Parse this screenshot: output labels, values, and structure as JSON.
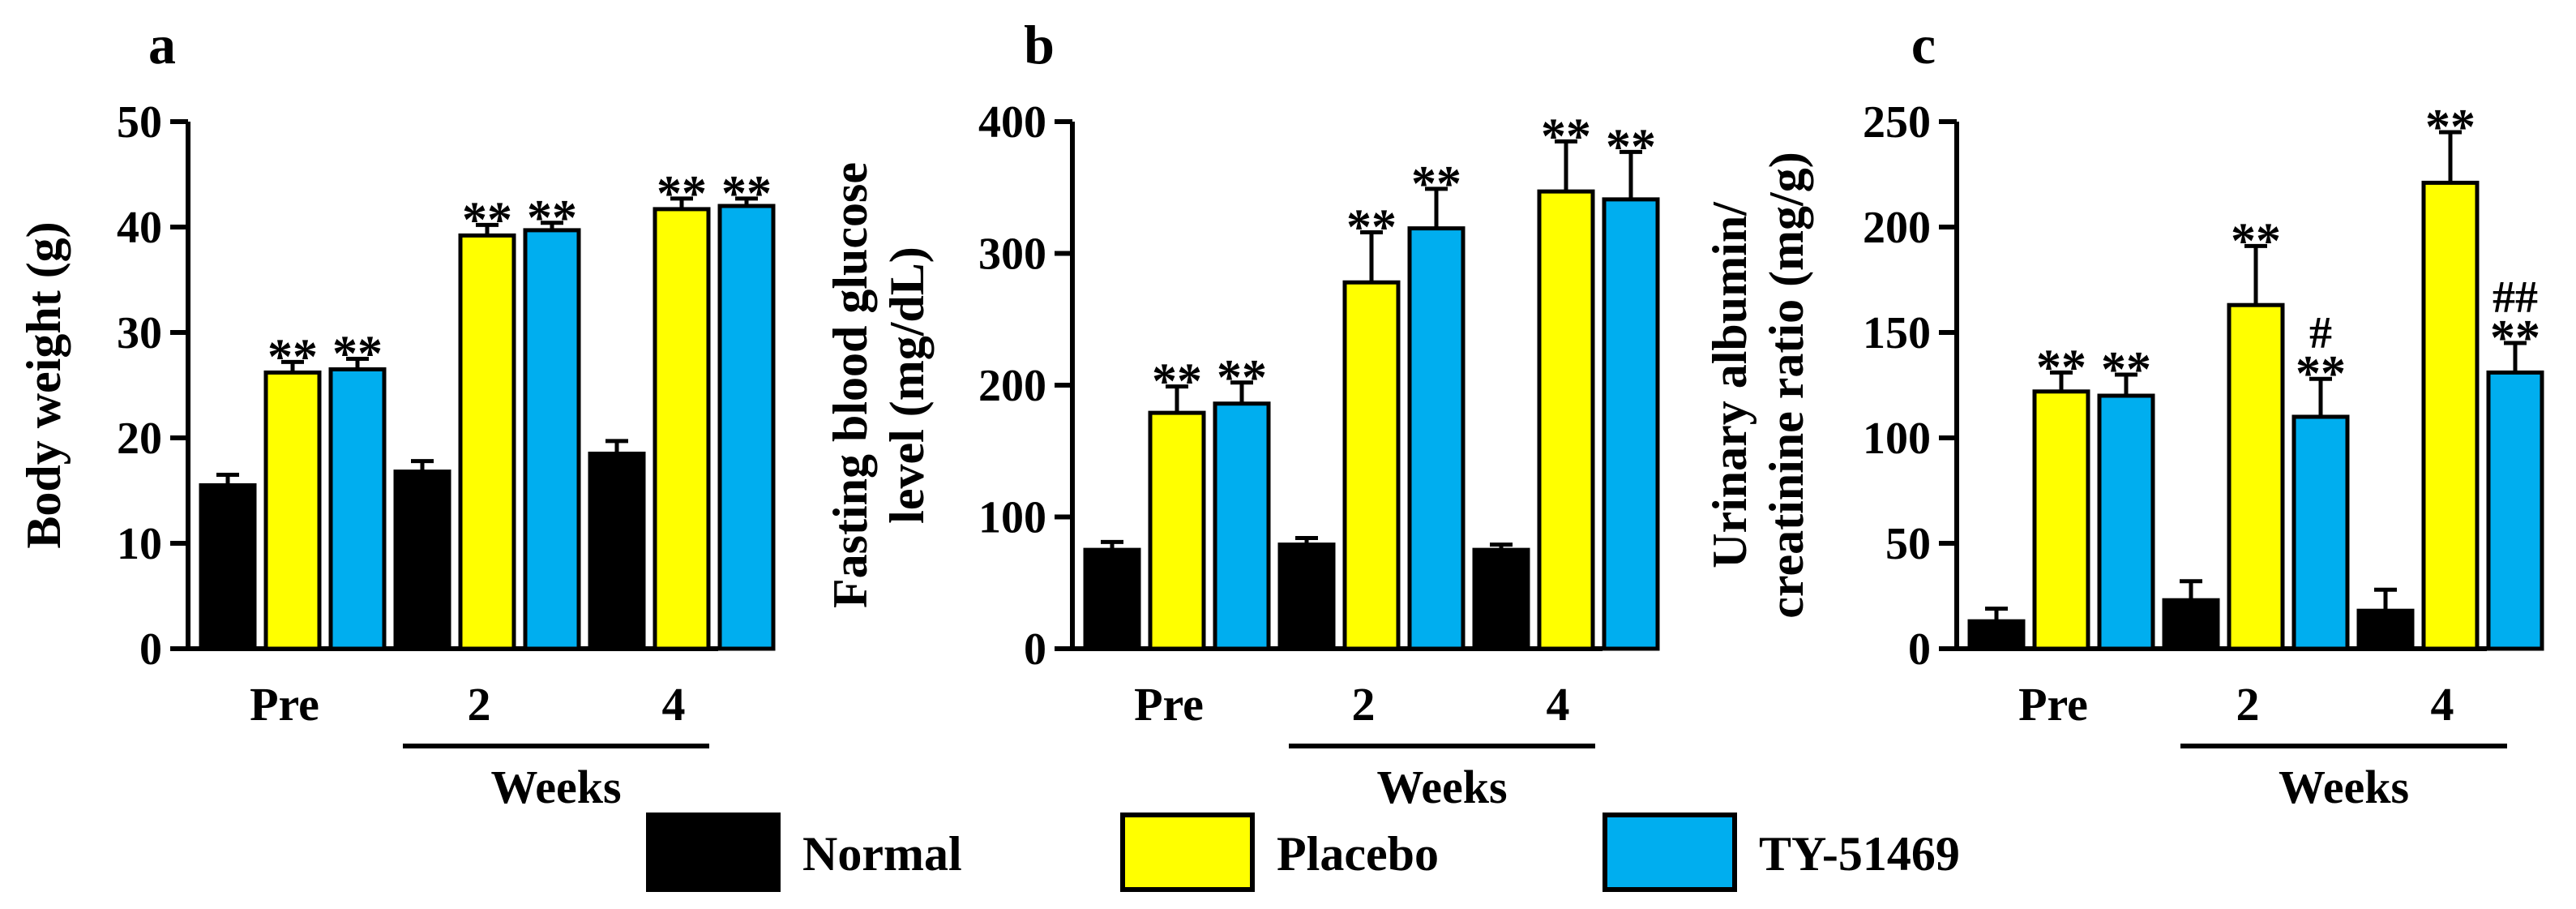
{
  "legend": [
    {
      "label": "Normal",
      "color": "#000000"
    },
    {
      "label": "Placebo",
      "color": "#ffff00"
    },
    {
      "label": "TY-51469",
      "color": "#00aeef"
    }
  ],
  "chart_data": [
    {
      "type": "bar",
      "panel": "a",
      "ylabel": "Body weight (g)",
      "ylabel_lines": [
        "Body weight (g)"
      ],
      "ylim": [
        0,
        50
      ],
      "yticks": [
        0,
        10,
        20,
        30,
        40,
        50
      ],
      "categories": [
        "Pre",
        "2",
        "4"
      ],
      "xlabel": "Weeks",
      "series": [
        {
          "name": "Normal",
          "values": [
            15.5,
            16.8,
            18.5
          ],
          "errors": [
            1.0,
            1.0,
            1.2
          ]
        },
        {
          "name": "Placebo",
          "values": [
            26.2,
            39.2,
            41.7
          ],
          "errors": [
            1.0,
            1.0,
            1.0
          ]
        },
        {
          "name": "TY-51469",
          "values": [
            26.5,
            39.7,
            42.0
          ],
          "errors": [
            1.0,
            0.7,
            0.7
          ]
        }
      ],
      "annotations": [
        {
          "category": 0,
          "series": 1,
          "text": "**"
        },
        {
          "category": 0,
          "series": 2,
          "text": "**"
        },
        {
          "category": 1,
          "series": 1,
          "text": "**"
        },
        {
          "category": 1,
          "series": 2,
          "text": "**"
        },
        {
          "category": 2,
          "series": 1,
          "text": "**"
        },
        {
          "category": 2,
          "series": 2,
          "text": "**"
        }
      ]
    },
    {
      "type": "bar",
      "panel": "b",
      "ylabel": "Fasting blood glucose level (mg/dL)",
      "ylabel_lines": [
        "Fasting blood glucose",
        "level (mg/dL)"
      ],
      "ylim": [
        0,
        400
      ],
      "yticks": [
        0,
        100,
        200,
        300,
        400
      ],
      "categories": [
        "Pre",
        "2",
        "4"
      ],
      "xlabel": "Weeks",
      "series": [
        {
          "name": "Normal",
          "values": [
            75,
            79,
            75
          ],
          "errors": [
            6,
            5,
            4
          ]
        },
        {
          "name": "Placebo",
          "values": [
            179,
            278,
            347
          ],
          "errors": [
            20,
            38,
            38
          ]
        },
        {
          "name": "TY-51469",
          "values": [
            186,
            319,
            341
          ],
          "errors": [
            16,
            30,
            36
          ]
        }
      ],
      "annotations": [
        {
          "category": 0,
          "series": 1,
          "text": "**"
        },
        {
          "category": 0,
          "series": 2,
          "text": "**"
        },
        {
          "category": 1,
          "series": 1,
          "text": "**"
        },
        {
          "category": 1,
          "series": 2,
          "text": "**"
        },
        {
          "category": 2,
          "series": 1,
          "text": "**"
        },
        {
          "category": 2,
          "series": 2,
          "text": "**"
        }
      ]
    },
    {
      "type": "bar",
      "panel": "c",
      "ylabel": "Urinary albumin/ creatinine ratio (mg/g)",
      "ylabel_lines": [
        "Urinary albumin/",
        "creatinine ratio (mg/g)"
      ],
      "ylim": [
        0,
        250
      ],
      "yticks": [
        0,
        50,
        100,
        150,
        200,
        250
      ],
      "categories": [
        "Pre",
        "2",
        "4"
      ],
      "xlabel": "Weeks",
      "series": [
        {
          "name": "Normal",
          "values": [
            13,
            23,
            18
          ],
          "errors": [
            6,
            9,
            10
          ]
        },
        {
          "name": "Placebo",
          "values": [
            122,
            163,
            221
          ],
          "errors": [
            9,
            28,
            24
          ]
        },
        {
          "name": "TY-51469",
          "values": [
            120,
            110,
            131
          ],
          "errors": [
            10,
            18,
            14
          ]
        }
      ],
      "annotations": [
        {
          "category": 0,
          "series": 1,
          "text": "**"
        },
        {
          "category": 0,
          "series": 2,
          "text": "**"
        },
        {
          "category": 1,
          "series": 1,
          "text": "**"
        },
        {
          "category": 1,
          "series": 2,
          "text": "**",
          "text2": "#"
        },
        {
          "category": 2,
          "series": 1,
          "text": "**"
        },
        {
          "category": 2,
          "series": 2,
          "text": "**",
          "text2": "##"
        }
      ]
    }
  ]
}
